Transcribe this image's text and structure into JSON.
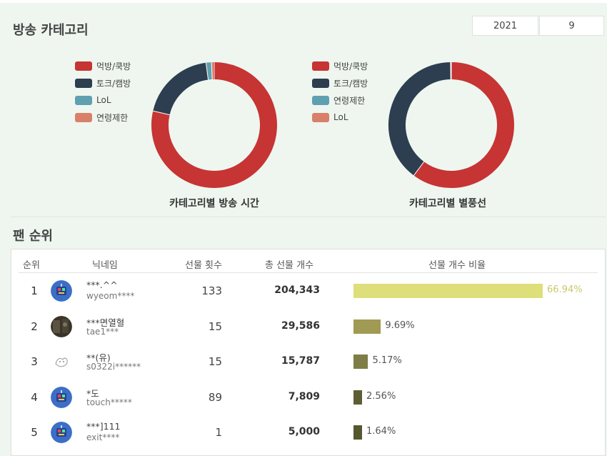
{
  "category_section": {
    "title": "방송 카테고리",
    "year": "2021",
    "month": "9"
  },
  "charts": [
    {
      "caption": "카테고리별 방송 시간",
      "legend": [
        {
          "label": "먹방/쿡방",
          "color": "#c63434"
        },
        {
          "label": "토크/캠방",
          "color": "#2c3e50"
        },
        {
          "label": "LoL",
          "color": "#5fa0b0"
        },
        {
          "label": "연령제한",
          "color": "#d9806a"
        }
      ]
    },
    {
      "caption": "카테고리별 별풍선",
      "legend": [
        {
          "label": "먹방/쿡방",
          "color": "#c63434"
        },
        {
          "label": "토크/캠방",
          "color": "#2c3e50"
        },
        {
          "label": "연령제한",
          "color": "#5fa0b0"
        },
        {
          "label": "LoL",
          "color": "#d9806a"
        }
      ]
    }
  ],
  "chart_data": [
    {
      "type": "pie",
      "title": "카테고리별 방송 시간",
      "labels": [
        "먹방/쿡방",
        "토크/캠방",
        "LoL",
        "연령제한"
      ],
      "values": [
        78.6,
        19.3,
        1.4,
        0.7
      ]
    },
    {
      "type": "pie",
      "title": "카테고리별 별풍선",
      "labels": [
        "먹방/쿡방",
        "토크/캠방",
        "연령제한",
        "LoL"
      ],
      "values": [
        60.2,
        39.6,
        0.1,
        0.1
      ]
    }
  ],
  "fan_section": {
    "title": "팬 순위",
    "headers": {
      "rank": "순위",
      "nickname": "닉네임",
      "gift_count": "선물 횟수",
      "total": "총 선물 개수",
      "ratio": "선물 개수 비율"
    },
    "rows": [
      {
        "rank": "1",
        "nick": "***.^^",
        "id": "wyeom****",
        "count": "133",
        "total": "204,343",
        "pct": "66.94%",
        "ratio": 0.6694,
        "color": "#dede7a",
        "avatar": "robot"
      },
      {
        "rank": "2",
        "nick": "***면열혈",
        "id": "tae1***",
        "count": "15",
        "total": "29,586",
        "pct": "9.69%",
        "ratio": 0.0969,
        "color": "#a09a54",
        "avatar": "photo"
      },
      {
        "rank": "3",
        "nick": "**(유)",
        "id": "s0322i******",
        "count": "15",
        "total": "15,787",
        "pct": "5.17%",
        "ratio": 0.0517,
        "color": "#7e7d45",
        "avatar": "sketch"
      },
      {
        "rank": "4",
        "nick": "*도",
        "id": "touch*****",
        "count": "89",
        "total": "7,809",
        "pct": "2.56%",
        "ratio": 0.0256,
        "color": "#5e5e34",
        "avatar": "robot"
      },
      {
        "rank": "5",
        "nick": "***]111",
        "id": "exit****",
        "count": "1",
        "total": "5,000",
        "pct": "1.64%",
        "ratio": 0.0164,
        "color": "#55572f",
        "avatar": "robot"
      }
    ]
  }
}
